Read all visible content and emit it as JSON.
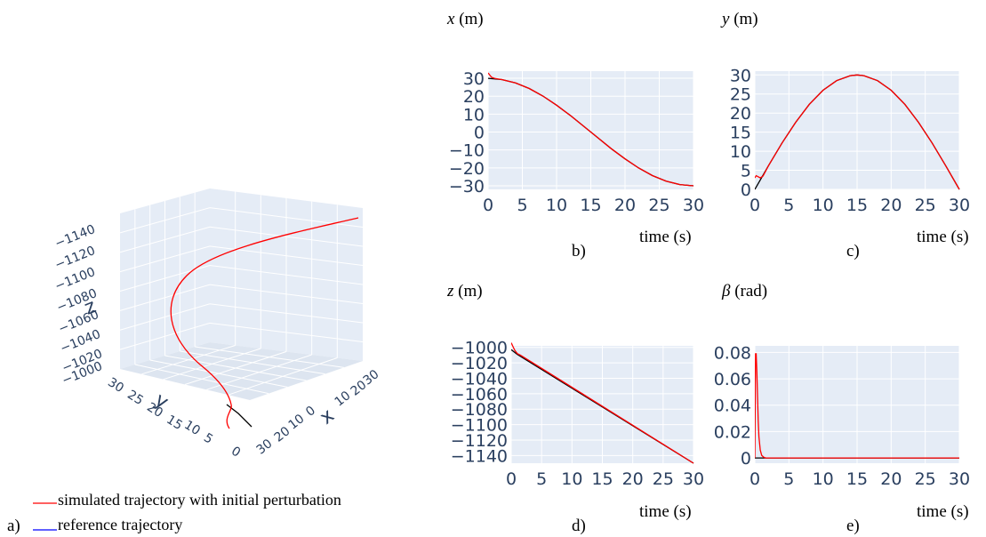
{
  "colors": {
    "plot_bg": "#e5ecf6",
    "grid": "#ffffff",
    "tick": "#2a3f5f",
    "simulated": "#ff0000",
    "reference": "#000000",
    "legend_reference": "#0000ff"
  },
  "panels": {
    "a": "a)",
    "b": "b)",
    "c": "c)",
    "d": "d)",
    "e": "e)"
  },
  "legend": {
    "simulated": "simulated trajectory with initial perturbation",
    "reference": "reference trajectory"
  },
  "chart_data": [
    {
      "id": "a",
      "type": "line3d",
      "x_axis": {
        "label": "x",
        "ticks": [
          30,
          20,
          10,
          0,
          10,
          20,
          30
        ]
      },
      "y_axis": {
        "label": "y",
        "ticks": [
          30,
          25,
          20,
          15,
          10,
          5,
          0
        ]
      },
      "z_axis": {
        "label": "z",
        "ticks": [
          -1140,
          -1120,
          -1100,
          -1080,
          -1060,
          -1040,
          -1020,
          -1000
        ]
      },
      "series": [
        {
          "name": "simulated trajectory with initial perturbation",
          "color": "#ff0000"
        },
        {
          "name": "reference trajectory",
          "color": "#000000"
        }
      ]
    },
    {
      "id": "b",
      "type": "line",
      "ylabel_sym": "x",
      "ylabel_unit": "(m)",
      "xlabel": "time (s)",
      "xlim": [
        0,
        30
      ],
      "ylim": [
        -32,
        34
      ],
      "xticks": [
        0,
        5,
        10,
        15,
        20,
        25,
        30
      ],
      "yticks": [
        -30,
        -20,
        -10,
        0,
        10,
        20,
        30
      ],
      "ytick_labels": [
        "−30",
        "−20",
        "−10",
        "0",
        "10",
        "20",
        "30"
      ],
      "reference": {
        "x": [
          0,
          2,
          4,
          6,
          8,
          10,
          12,
          14,
          15,
          16,
          18,
          20,
          22,
          24,
          26,
          28,
          30
        ],
        "y": [
          30,
          29.3,
          27.4,
          24.3,
          20.1,
          15,
          9.3,
          3.1,
          0,
          -3.1,
          -9.3,
          -15,
          -20.1,
          -24.3,
          -27.4,
          -29.3,
          -30
        ]
      },
      "simulated": {
        "x": [
          0,
          0.2,
          0.5,
          1,
          2,
          4,
          6,
          8,
          10,
          12,
          14,
          15,
          16,
          18,
          20,
          22,
          24,
          26,
          28,
          30
        ],
        "y": [
          33,
          32,
          30.6,
          29.9,
          29.3,
          27.4,
          24.3,
          20.1,
          15,
          9.3,
          3.1,
          0,
          -3.1,
          -9.3,
          -15,
          -20.1,
          -24.3,
          -27.4,
          -29.3,
          -30
        ]
      }
    },
    {
      "id": "c",
      "type": "line",
      "ylabel_sym": "y",
      "ylabel_unit": "(m)",
      "xlabel": "time (s)",
      "xlim": [
        0,
        30
      ],
      "ylim": [
        0,
        31
      ],
      "xticks": [
        0,
        5,
        10,
        15,
        20,
        25,
        30
      ],
      "yticks": [
        0,
        5,
        10,
        15,
        20,
        25,
        30
      ],
      "ytick_labels": [
        "0",
        "5",
        "10",
        "15",
        "20",
        "25",
        "30"
      ],
      "reference": {
        "x": [
          0,
          2,
          4,
          6,
          8,
          10,
          12,
          14,
          15,
          16,
          18,
          20,
          22,
          24,
          26,
          28,
          30
        ],
        "y": [
          0,
          6.2,
          12.2,
          17.6,
          22.3,
          26,
          28.5,
          29.8,
          30,
          29.8,
          28.5,
          26,
          22.3,
          17.6,
          12.2,
          6.2,
          0
        ]
      },
      "simulated": {
        "x": [
          0,
          0.2,
          0.5,
          0.8,
          1.2,
          2,
          4,
          6,
          8,
          10,
          12,
          14,
          15,
          16,
          18,
          20,
          22,
          24,
          26,
          28,
          30
        ],
        "y": [
          3.0,
          3.6,
          3.3,
          3.0,
          3.5,
          6.2,
          12.2,
          17.6,
          22.3,
          26,
          28.5,
          29.8,
          30,
          29.8,
          28.5,
          26,
          22.3,
          17.6,
          12.2,
          6.2,
          0
        ]
      }
    },
    {
      "id": "d",
      "type": "line",
      "ylabel_sym": "z",
      "ylabel_unit": "(m)",
      "xlabel": "time (s)",
      "xlim": [
        0,
        30
      ],
      "ylim": [
        -1150,
        -998
      ],
      "xticks": [
        0,
        5,
        10,
        15,
        20,
        25,
        30
      ],
      "yticks": [
        -1140,
        -1120,
        -1100,
        -1080,
        -1060,
        -1040,
        -1020,
        -1000
      ],
      "ytick_labels": [
        "−1140",
        "−1120",
        "−1100",
        "−1080",
        "−1060",
        "−1040",
        "−1020",
        "−1000"
      ],
      "reference": {
        "x": [
          0,
          1,
          30
        ],
        "y": [
          -1003,
          -1009,
          -1150
        ]
      },
      "simulated": {
        "x": [
          0,
          0.3,
          0.6,
          1,
          1.5,
          30
        ],
        "y": [
          -994,
          -999,
          -1004,
          -1008,
          -1010,
          -1150
        ]
      }
    },
    {
      "id": "e",
      "type": "line",
      "ylabel_sym": "β",
      "ylabel_unit": "(rad)",
      "xlabel": "time (s)",
      "xlim": [
        0,
        30
      ],
      "ylim": [
        -0.004,
        0.085
      ],
      "xticks": [
        0,
        5,
        10,
        15,
        20,
        25,
        30
      ],
      "yticks": [
        0,
        0.02,
        0.04,
        0.06,
        0.08
      ],
      "ytick_labels": [
        "0",
        "0.02",
        "0.04",
        "0.06",
        "0.08"
      ],
      "reference": {
        "x": [
          0,
          30
        ],
        "y": [
          0,
          0
        ]
      },
      "simulated": {
        "x": [
          0,
          0.1,
          0.2,
          0.3,
          0.4,
          0.5,
          0.6,
          0.8,
          1.0,
          1.3,
          1.6,
          30
        ],
        "y": [
          0,
          0.079,
          0.079,
          0.065,
          0.045,
          0.028,
          0.016,
          0.006,
          0.002,
          0.0005,
          0,
          0
        ]
      }
    }
  ]
}
